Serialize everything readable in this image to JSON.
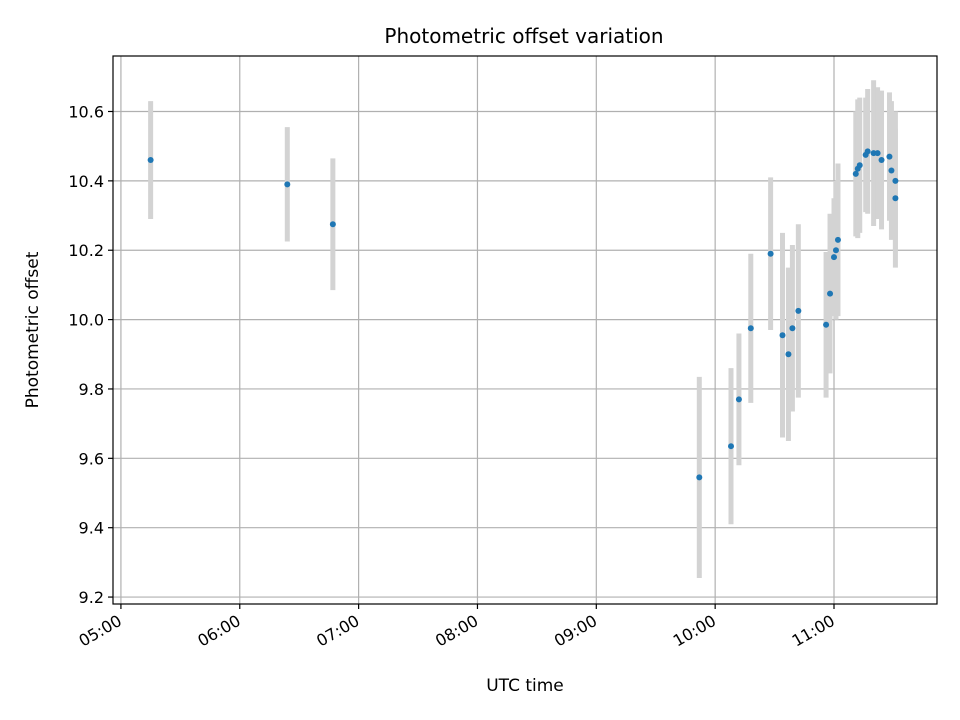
{
  "chart_data": {
    "type": "scatter",
    "title": "Photometric offset variation",
    "xlabel": "UTC time",
    "ylabel": "Photometric offset",
    "x_tick_labels": [
      "05:00",
      "06:00",
      "07:00",
      "08:00",
      "09:00",
      "10:00",
      "11:00"
    ],
    "y_tick_labels": [
      "9.2",
      "9.4",
      "9.6",
      "9.8",
      "10.0",
      "10.2",
      "10.4",
      "10.6"
    ],
    "y_ticks": [
      9.2,
      9.4,
      9.6,
      9.8,
      10.0,
      10.2,
      10.4,
      10.6
    ],
    "xlim": [
      "04:56",
      "11:52"
    ],
    "ylim": [
      9.18,
      10.76
    ],
    "grid": true,
    "series": [
      {
        "point_color": "#1f77b4",
        "errorbar_color": "#d3d3d3",
        "points": [
          {
            "time": "05:15",
            "y": 10.46,
            "yerr": 0.17
          },
          {
            "time": "06:24",
            "y": 10.39,
            "yerr": 0.165
          },
          {
            "time": "06:47",
            "y": 10.275,
            "yerr": 0.19
          },
          {
            "time": "09:52",
            "y": 9.545,
            "yerr": 0.29
          },
          {
            "time": "10:08",
            "y": 9.635,
            "yerr": 0.225
          },
          {
            "time": "10:12",
            "y": 9.77,
            "yerr": 0.19
          },
          {
            "time": "10:18",
            "y": 9.975,
            "yerr": 0.215
          },
          {
            "time": "10:28",
            "y": 10.19,
            "yerr": 0.22
          },
          {
            "time": "10:34",
            "y": 9.955,
            "yerr": 0.295
          },
          {
            "time": "10:37",
            "y": 9.9,
            "yerr": 0.25
          },
          {
            "time": "10:39",
            "y": 9.975,
            "yerr": 0.24
          },
          {
            "time": "10:42",
            "y": 10.025,
            "yerr": 0.25
          },
          {
            "time": "10:56",
            "y": 9.985,
            "yerr": 0.21
          },
          {
            "time": "10:58",
            "y": 10.075,
            "yerr": 0.23
          },
          {
            "time": "11:00",
            "y": 10.18,
            "yerr": 0.17
          },
          {
            "time": "11:01",
            "y": 10.2,
            "yerr": 0.2
          },
          {
            "time": "11:02",
            "y": 10.23,
            "yerr": 0.22
          },
          {
            "time": "11:11",
            "y": 10.42,
            "yerr": 0.18
          },
          {
            "time": "11:12",
            "y": 10.435,
            "yerr": 0.2
          },
          {
            "time": "11:13",
            "y": 10.445,
            "yerr": 0.195
          },
          {
            "time": "11:16",
            "y": 10.475,
            "yerr": 0.165
          },
          {
            "time": "11:17",
            "y": 10.485,
            "yerr": 0.18
          },
          {
            "time": "11:20",
            "y": 10.48,
            "yerr": 0.21
          },
          {
            "time": "11:22",
            "y": 10.48,
            "yerr": 0.19
          },
          {
            "time": "11:24",
            "y": 10.46,
            "yerr": 0.2
          },
          {
            "time": "11:28",
            "y": 10.47,
            "yerr": 0.185
          },
          {
            "time": "11:29",
            "y": 10.43,
            "yerr": 0.2
          },
          {
            "time": "11:31",
            "y": 10.4,
            "yerr": 0.2
          },
          {
            "time": "11:31",
            "y": 10.35,
            "yerr": 0.2
          }
        ]
      }
    ]
  }
}
